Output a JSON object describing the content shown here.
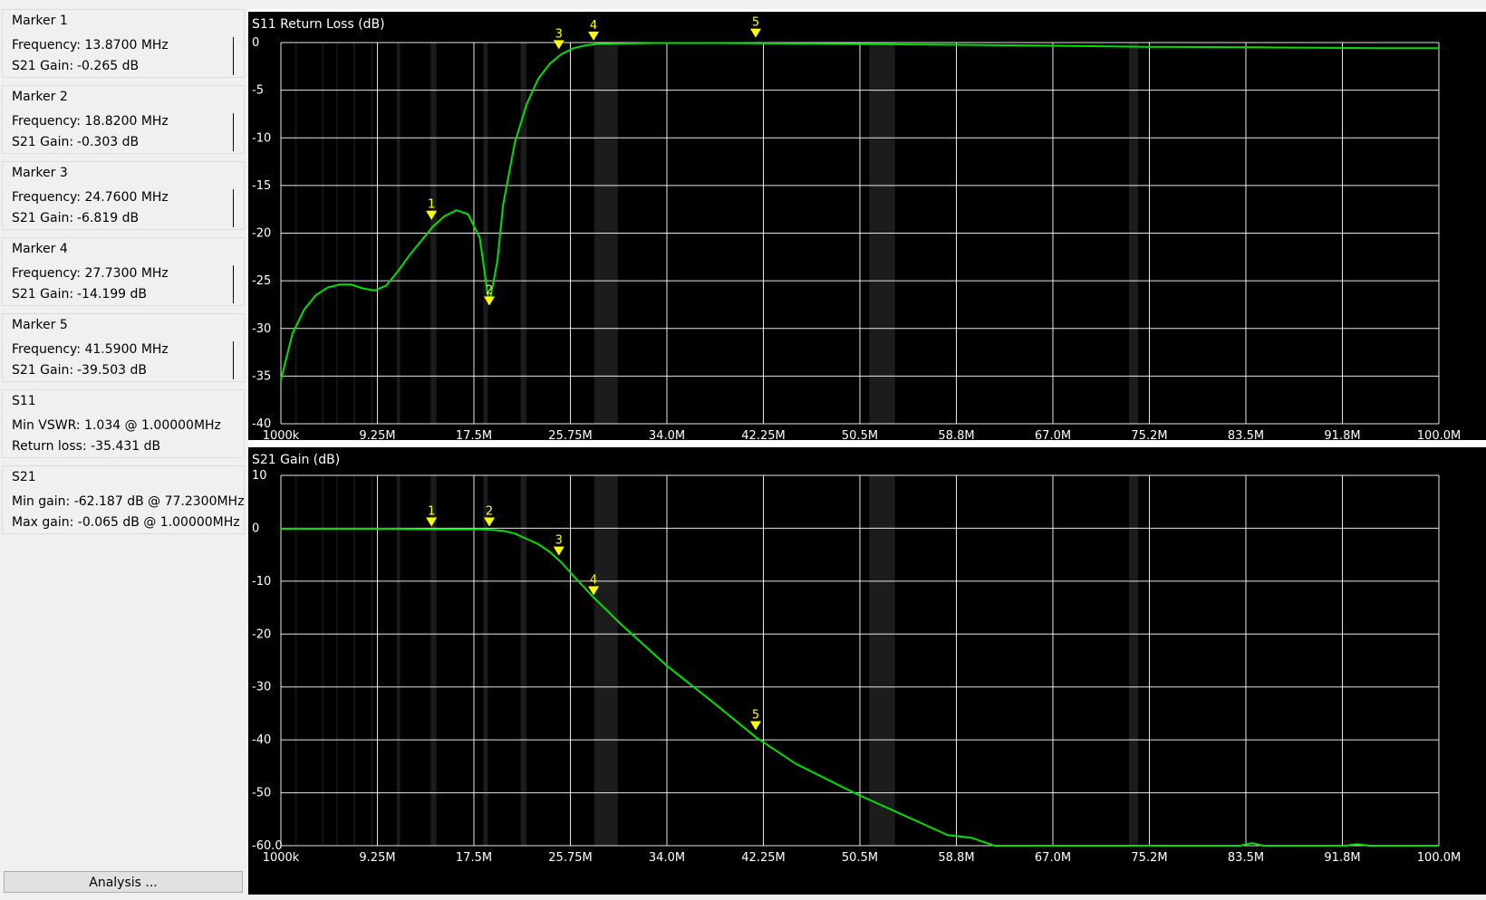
{
  "sidebar": {
    "markers": [
      {
        "title": "Marker 1",
        "freq_label": "Frequency:",
        "freq_value": "13.8700 MHz",
        "gain_label": "S21 Gain:",
        "gain_value": "-0.265 dB"
      },
      {
        "title": "Marker 2",
        "freq_label": "Frequency:",
        "freq_value": "18.8200 MHz",
        "gain_label": "S21 Gain:",
        "gain_value": "-0.303 dB"
      },
      {
        "title": "Marker 3",
        "freq_label": "Frequency:",
        "freq_value": "24.7600 MHz",
        "gain_label": "S21 Gain:",
        "gain_value": "-6.819 dB"
      },
      {
        "title": "Marker 4",
        "freq_label": "Frequency:",
        "freq_value": "27.7300 MHz",
        "gain_label": "S21 Gain:",
        "gain_value": "-14.199 dB"
      },
      {
        "title": "Marker 5",
        "freq_label": "Frequency:",
        "freq_value": "41.5900 MHz",
        "gain_label": "S21 Gain:",
        "gain_value": "-39.503 dB"
      }
    ],
    "s11": {
      "title": "S11",
      "vswr_label": "Min VSWR:",
      "vswr_value": "1.034 @ 1.00000MHz",
      "rl_label": "Return loss:",
      "rl_value": "-35.431 dB"
    },
    "s21": {
      "title": "S21",
      "min_label": "Min gain:",
      "min_value": "-62.187 dB @ 77.2300MHz",
      "max_label": "Max gain:",
      "max_value": "-0.065 dB @ 1.00000MHz"
    },
    "analysis_button": "Analysis ..."
  },
  "colors": {
    "trace": "#00e000",
    "marker": "#ffff00",
    "grid": "#ffffff",
    "plot_bg": "#000000",
    "band": "#1c1c1c"
  },
  "chart_data": [
    {
      "type": "line",
      "title": "S11 Return Loss (dB)",
      "xlabel": "",
      "ylabel": "",
      "xlim": [
        1,
        100
      ],
      "ylim": [
        -40,
        0
      ],
      "xticks": [
        "1000k",
        "9.25M",
        "17.5M",
        "25.75M",
        "34.0M",
        "42.25M",
        "50.5M",
        "58.8M",
        "67.0M",
        "75.2M",
        "83.5M",
        "91.8M",
        "100.0M"
      ],
      "yticks": [
        "0",
        "-5",
        "-10",
        "-15",
        "-20",
        "-25",
        "-30",
        "-35",
        "-40"
      ],
      "yvalues": [
        0,
        -5,
        -10,
        -15,
        -20,
        -25,
        -30,
        -35,
        -40
      ],
      "grid": true,
      "series": [
        {
          "x": [
            1,
            2,
            3,
            4,
            5,
            6,
            7,
            8,
            9,
            10,
            11,
            12,
            13,
            14,
            15,
            16,
            17,
            18,
            18.8,
            19.5,
            20,
            21,
            22,
            23,
            24,
            25,
            26,
            27,
            28,
            30,
            33,
            38,
            45,
            55,
            65,
            75,
            85,
            95,
            100
          ],
          "y": [
            -35.4,
            -30.5,
            -28,
            -26.5,
            -25.7,
            -25.4,
            -25.4,
            -25.8,
            -26,
            -25.5,
            -24,
            -22.3,
            -20.8,
            -19.3,
            -18.2,
            -17.6,
            -18,
            -20.5,
            -27.5,
            -23,
            -17,
            -10.5,
            -6.5,
            -3.8,
            -2.2,
            -1.2,
            -0.6,
            -0.3,
            -0.15,
            -0.1,
            -0.05,
            -0.05,
            -0.1,
            -0.2,
            -0.3,
            -0.45,
            -0.5,
            -0.6,
            -0.6
          ]
        }
      ],
      "markers": [
        {
          "label": "1",
          "x": 13.87,
          "y": -18.5
        },
        {
          "label": "2",
          "x": 18.82,
          "y": -27.5
        },
        {
          "label": "3",
          "x": 24.76,
          "y": -0.6
        },
        {
          "label": "4",
          "x": 27.73,
          "y": 0.3
        },
        {
          "label": "5",
          "x": 41.59,
          "y": 0.6
        }
      ]
    },
    {
      "type": "line",
      "title": "S21 Gain (dB)",
      "xlabel": "",
      "ylabel": "",
      "xlim": [
        1,
        100
      ],
      "ylim": [
        -60,
        10
      ],
      "xticks": [
        "1000k",
        "9.25M",
        "17.5M",
        "25.75M",
        "34.0M",
        "42.25M",
        "50.5M",
        "58.8M",
        "67.0M",
        "75.2M",
        "83.5M",
        "91.8M",
        "100.0M"
      ],
      "yticks": [
        "10",
        "0",
        "-10",
        "-20",
        "-30",
        "-40",
        "-50",
        "-60.0"
      ],
      "yvalues": [
        10,
        0,
        -10,
        -20,
        -30,
        -40,
        -50,
        -60
      ],
      "grid": true,
      "series": [
        {
          "x": [
            1,
            5,
            10,
            14,
            18,
            19,
            20,
            21,
            22,
            23,
            24,
            25,
            26,
            27.7,
            30,
            34,
            38,
            41.6,
            45,
            50,
            55,
            58,
            60,
            62,
            64,
            65,
            66,
            70,
            75,
            77.2,
            80,
            83,
            84,
            85,
            88,
            91,
            92,
            93,
            94,
            95,
            100
          ],
          "y": [
            -0.1,
            -0.1,
            -0.1,
            -0.2,
            -0.2,
            -0.3,
            -0.5,
            -1,
            -2,
            -3,
            -4.5,
            -6.5,
            -9,
            -13,
            -18,
            -26,
            -33,
            -39.5,
            -44.5,
            -50,
            -55,
            -58,
            -58.5,
            -60,
            -61,
            -61.5,
            -62,
            -62.2,
            -62.2,
            -62.2,
            -62,
            -61.5,
            -59.5,
            -60,
            -61,
            -61,
            -60.5,
            -59.7,
            -60,
            -61,
            -62
          ]
        }
      ],
      "markers": [
        {
          "label": "1",
          "x": 13.87,
          "y": 0.5
        },
        {
          "label": "2",
          "x": 18.82,
          "y": 0.5
        },
        {
          "label": "3",
          "x": 24.76,
          "y": -5
        },
        {
          "label": "4",
          "x": 27.73,
          "y": -12.5
        },
        {
          "label": "5",
          "x": 41.59,
          "y": -38
        }
      ]
    }
  ]
}
